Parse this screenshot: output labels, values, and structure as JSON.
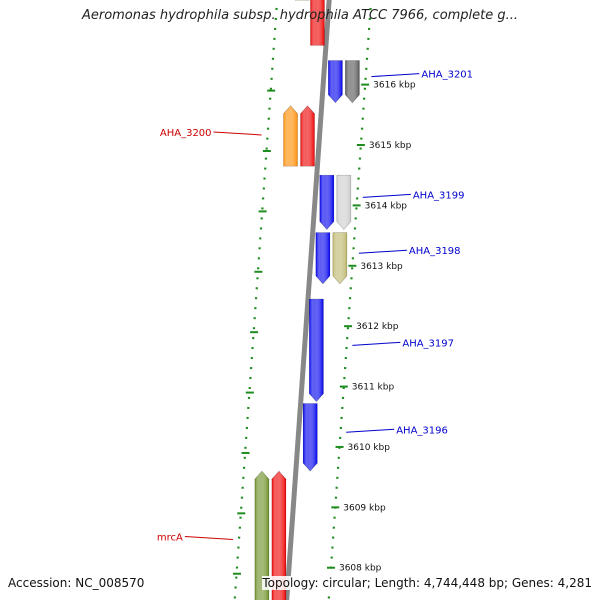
{
  "title": "Aeromonas hydrophila subsp. hydrophila ATCC 7966, complete g...",
  "footer": {
    "accession": "Accession: NC_008570",
    "summary": "Topology: circular; Length: 4,744,448 bp; Genes: 4,281"
  },
  "colors": {
    "axis": "#888888",
    "forward_track": "#1e8c1e",
    "reverse_track": "#1e8c1e",
    "blue_gene": "#0000ee",
    "red_gene": "#ee0000",
    "green_gene": "#6b8e23",
    "orange_gene": "#ff8c00",
    "dark_gray_gene": "#555555",
    "light_gray_gene": "#cccccc",
    "khaki_gene": "#bdb76b",
    "blue_label": "#0000cc",
    "red_label": "#cc0000"
  },
  "map": {
    "unit": "kbp",
    "range_kbp": [
      3607.3,
      3617.6
    ],
    "ticks": [
      {
        "pos": 3616,
        "label": "3616 kbp"
      },
      {
        "pos": 3615,
        "label": "3615 kbp"
      },
      {
        "pos": 3614,
        "label": "3614 kbp"
      },
      {
        "pos": 3613,
        "label": "3613 kbp"
      },
      {
        "pos": 3612,
        "label": "3612 kbp"
      },
      {
        "pos": 3611,
        "label": "3611 kbp"
      },
      {
        "pos": 3610,
        "label": "3610 kbp"
      },
      {
        "pos": 3609,
        "label": "3609 kbp"
      },
      {
        "pos": 3608,
        "label": "3608 kbp"
      }
    ],
    "genes": [
      {
        "strand": "reverse",
        "lane": 1,
        "start": 3617.4,
        "end": 3618.3,
        "color": "green_gene"
      },
      {
        "strand": "reverse",
        "lane": 0,
        "start": 3616.65,
        "end": 3618.3,
        "color": "red_gene"
      },
      {
        "strand": "forward",
        "lane": 0,
        "start": 3615.7,
        "end": 3616.4,
        "color": "blue_gene"
      },
      {
        "strand": "forward",
        "lane": 1,
        "start": 3615.7,
        "end": 3616.4,
        "color": "dark_gray_gene",
        "label": "AHA_3201"
      },
      {
        "strand": "reverse",
        "lane": 1,
        "start": 3614.65,
        "end": 3615.65,
        "color": "orange_gene",
        "label": "AHA_3200"
      },
      {
        "strand": "reverse",
        "lane": 0,
        "start": 3614.65,
        "end": 3615.65,
        "color": "red_gene"
      },
      {
        "strand": "forward",
        "lane": 0,
        "start": 3613.6,
        "end": 3614.5,
        "color": "blue_gene"
      },
      {
        "strand": "forward",
        "lane": 1,
        "start": 3613.6,
        "end": 3614.5,
        "color": "light_gray_gene",
        "label": "AHA_3199"
      },
      {
        "strand": "forward",
        "lane": 0,
        "start": 3612.7,
        "end": 3613.55,
        "color": "blue_gene"
      },
      {
        "strand": "forward",
        "lane": 1,
        "start": 3612.7,
        "end": 3613.55,
        "color": "khaki_gene",
        "label": "AHA_3198"
      },
      {
        "strand": "forward",
        "lane": 0,
        "start": 3610.75,
        "end": 3612.45,
        "color": "blue_gene",
        "label": "AHA_3197"
      },
      {
        "strand": "forward",
        "lane": 0,
        "start": 3609.6,
        "end": 3610.72,
        "color": "blue_gene",
        "label": "AHA_3196"
      },
      {
        "strand": "reverse",
        "lane": 1,
        "start": 3607.3,
        "end": 3609.6,
        "color": "green_gene",
        "label": "mrcA"
      },
      {
        "strand": "reverse",
        "lane": 0,
        "start": 3607.3,
        "end": 3609.6,
        "color": "red_gene"
      }
    ]
  }
}
